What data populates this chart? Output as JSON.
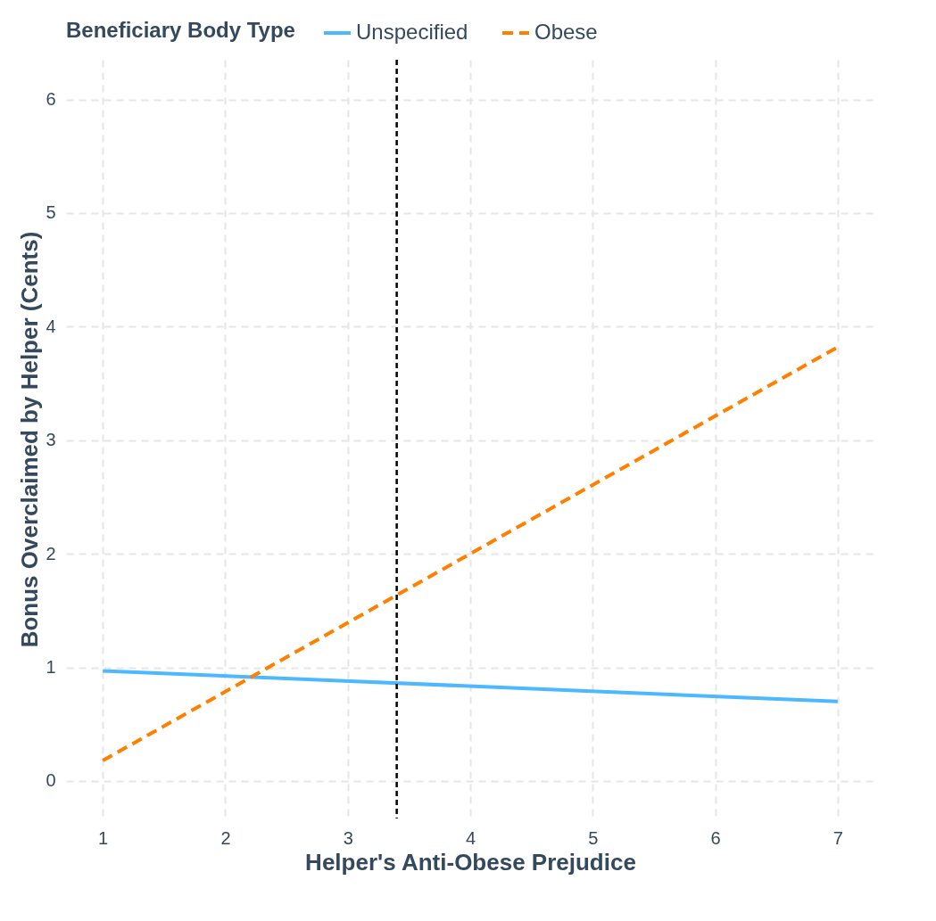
{
  "chart_data": {
    "type": "line",
    "xlabel": "Helper's Anti-Obese Prejudice",
    "ylabel": "Bonus Overclaimed by Helper (Cents)",
    "legend_title": "Beneficiary Body Type",
    "x": [
      1,
      7
    ],
    "series": [
      {
        "name": "Unspecified",
        "color": "#4db8ff",
        "values": [
          0.97,
          0.7
        ],
        "line_style": "solid"
      },
      {
        "name": "Obese",
        "color": "#ff7f00",
        "values": [
          0.18,
          3.82
        ],
        "line_style": "dashed"
      }
    ],
    "xlim": [
      0.7,
      7.3
    ],
    "ylim": [
      -0.33,
      6.35
    ],
    "xticks": [
      1,
      2,
      3,
      4,
      5,
      6,
      7
    ],
    "yticks": [
      0,
      1,
      2,
      3,
      4,
      5,
      6
    ],
    "ref_lines": [
      {
        "axis": "x",
        "value": 3.4,
        "color": "#000000",
        "line_style": "dashed"
      }
    ],
    "grid": true,
    "legend": "top"
  }
}
